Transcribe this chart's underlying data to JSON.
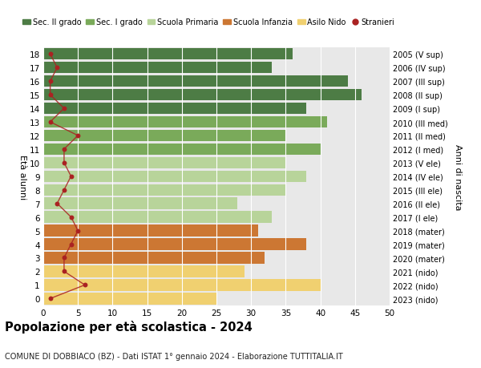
{
  "ages": [
    18,
    17,
    16,
    15,
    14,
    13,
    12,
    11,
    10,
    9,
    8,
    7,
    6,
    5,
    4,
    3,
    2,
    1,
    0
  ],
  "years": [
    "2005 (V sup)",
    "2006 (IV sup)",
    "2007 (III sup)",
    "2008 (II sup)",
    "2009 (I sup)",
    "2010 (III med)",
    "2011 (II med)",
    "2012 (I med)",
    "2013 (V ele)",
    "2014 (IV ele)",
    "2015 (III ele)",
    "2016 (II ele)",
    "2017 (I ele)",
    "2018 (mater)",
    "2019 (mater)",
    "2020 (mater)",
    "2021 (nido)",
    "2022 (nido)",
    "2023 (nido)"
  ],
  "bar_values": [
    36,
    33,
    44,
    46,
    38,
    41,
    35,
    40,
    35,
    38,
    35,
    28,
    33,
    31,
    38,
    32,
    29,
    40,
    25
  ],
  "bar_colors": [
    "#4d7c45",
    "#4d7c45",
    "#4d7c45",
    "#4d7c45",
    "#4d7c45",
    "#7aaa5a",
    "#7aaa5a",
    "#7aaa5a",
    "#b8d49a",
    "#b8d49a",
    "#b8d49a",
    "#b8d49a",
    "#b8d49a",
    "#cc7733",
    "#cc7733",
    "#cc7733",
    "#f0d070",
    "#f0d070",
    "#f0d070"
  ],
  "stranieri": [
    1,
    2,
    1,
    1,
    3,
    1,
    5,
    3,
    3,
    4,
    3,
    2,
    4,
    5,
    4,
    3,
    3,
    6,
    1
  ],
  "legend_labels": [
    "Sec. II grado",
    "Sec. I grado",
    "Scuola Primaria",
    "Scuola Infanzia",
    "Asilo Nido",
    "Stranieri"
  ],
  "legend_colors": [
    "#4d7c45",
    "#7aaa5a",
    "#b8d49a",
    "#cc7733",
    "#f0d070",
    "#cc0000"
  ],
  "ylabel_left": "Età alunni",
  "ylabel_right": "Anni di nascita",
  "title": "Popolazione per età scolastica - 2024",
  "subtitle": "COMUNE DI DOBBIACO (BZ) - Dati ISTAT 1° gennaio 2024 - Elaborazione TUTTITALIA.IT",
  "xlim": [
    0,
    50
  ],
  "xticks": [
    0,
    5,
    10,
    15,
    20,
    25,
    30,
    35,
    40,
    45,
    50
  ],
  "stranieri_color": "#aa2222",
  "background_color": "#ffffff",
  "plot_bg_color": "#e8e8e8",
  "bar_height": 0.85
}
